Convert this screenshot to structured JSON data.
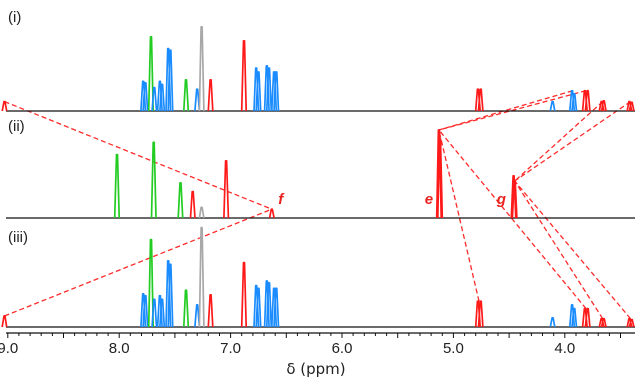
{
  "chart_data": {
    "type": "line",
    "title": "",
    "xlabel": "δ (ppm)",
    "x_reversed": true,
    "xlim": [
      9.07,
      3.37
    ],
    "xticks": [
      {
        "value": 9.0,
        "label": "9.0"
      },
      {
        "value": 8.0,
        "label": "8.0"
      },
      {
        "value": 7.0,
        "label": "7.0"
      },
      {
        "value": 6.0,
        "label": "6.0"
      },
      {
        "value": 5.0,
        "label": "5.0"
      },
      {
        "value": 4.0,
        "label": "4.0"
      }
    ],
    "colors": {
      "green": "#22cc22",
      "blue": "#1a8cff",
      "red": "#ff1a1a",
      "gray": "#a8a8a8",
      "baseline": "#111111",
      "correlation": "#ff2a2a"
    },
    "spectra": [
      {
        "label": "(i)",
        "peaks": [
          {
            "ppm": 9.03,
            "h": 0.12,
            "color": "red"
          },
          {
            "ppm": 7.785,
            "h": 0.38,
            "color": "blue"
          },
          {
            "ppm": 7.765,
            "h": 0.36,
            "color": "blue"
          },
          {
            "ppm": 7.715,
            "h": 0.95,
            "color": "green"
          },
          {
            "ppm": 7.685,
            "h": 0.3,
            "color": "blue"
          },
          {
            "ppm": 7.635,
            "h": 0.38,
            "color": "blue"
          },
          {
            "ppm": 7.615,
            "h": 0.34,
            "color": "blue"
          },
          {
            "ppm": 7.56,
            "h": 0.8,
            "color": "blue"
          },
          {
            "ppm": 7.54,
            "h": 0.78,
            "color": "blue"
          },
          {
            "ppm": 7.4,
            "h": 0.4,
            "color": "green"
          },
          {
            "ppm": 7.3,
            "h": 0.28,
            "color": "blue"
          },
          {
            "ppm": 7.26,
            "h": 1.08,
            "color": "gray"
          },
          {
            "ppm": 7.18,
            "h": 0.4,
            "color": "red"
          },
          {
            "ppm": 6.88,
            "h": 0.9,
            "color": "red"
          },
          {
            "ppm": 6.77,
            "h": 0.55,
            "color": "blue"
          },
          {
            "ppm": 6.75,
            "h": 0.5,
            "color": "blue"
          },
          {
            "ppm": 6.675,
            "h": 0.58,
            "color": "blue"
          },
          {
            "ppm": 6.655,
            "h": 0.55,
            "color": "blue"
          },
          {
            "ppm": 6.61,
            "h": 0.5,
            "color": "blue"
          },
          {
            "ppm": 6.59,
            "h": 0.5,
            "color": "blue"
          },
          {
            "ppm": 4.78,
            "h": 0.28,
            "color": "red"
          },
          {
            "ppm": 4.755,
            "h": 0.28,
            "color": "red"
          },
          {
            "ppm": 4.11,
            "h": 0.12,
            "color": "blue"
          },
          {
            "ppm": 3.935,
            "h": 0.26,
            "color": "blue"
          },
          {
            "ppm": 3.915,
            "h": 0.22,
            "color": "blue"
          },
          {
            "ppm": 3.82,
            "h": 0.26,
            "color": "red"
          },
          {
            "ppm": 3.795,
            "h": 0.26,
            "color": "red"
          },
          {
            "ppm": 3.67,
            "h": 0.12,
            "color": "red"
          },
          {
            "ppm": 3.65,
            "h": 0.13,
            "color": "red"
          },
          {
            "ppm": 3.42,
            "h": 0.12,
            "color": "red"
          },
          {
            "ppm": 3.4,
            "h": 0.11,
            "color": "red"
          }
        ]
      },
      {
        "label": "(ii)",
        "annotations": [
          {
            "text": "f",
            "ppm": 6.55
          },
          {
            "text": "e",
            "ppm": 5.22
          },
          {
            "text": "g",
            "ppm": 4.57
          }
        ],
        "peaks": [
          {
            "ppm": 8.02,
            "h": 0.72,
            "color": "green"
          },
          {
            "ppm": 7.69,
            "h": 0.86,
            "color": "green"
          },
          {
            "ppm": 7.45,
            "h": 0.4,
            "color": "green"
          },
          {
            "ppm": 7.34,
            "h": 0.3,
            "color": "red"
          },
          {
            "ppm": 7.26,
            "h": 0.12,
            "color": "gray"
          },
          {
            "ppm": 7.04,
            "h": 0.65,
            "color": "red"
          },
          {
            "ppm": 6.63,
            "h": 0.1,
            "color": "red"
          },
          {
            "ppm": 5.13,
            "h": 1.0,
            "color": "red"
          },
          {
            "ppm": 5.12,
            "h": 0.9,
            "color": "red"
          },
          {
            "ppm": 4.46,
            "h": 0.48,
            "color": "red"
          },
          {
            "ppm": 4.45,
            "h": 0.42,
            "color": "red"
          }
        ]
      },
      {
        "label": "(iii)",
        "peaks": [
          {
            "ppm": 9.03,
            "h": 0.12,
            "color": "red"
          },
          {
            "ppm": 7.785,
            "h": 0.36,
            "color": "blue"
          },
          {
            "ppm": 7.765,
            "h": 0.34,
            "color": "blue"
          },
          {
            "ppm": 7.715,
            "h": 0.95,
            "color": "green"
          },
          {
            "ppm": 7.685,
            "h": 0.3,
            "color": "blue"
          },
          {
            "ppm": 7.635,
            "h": 0.34,
            "color": "blue"
          },
          {
            "ppm": 7.615,
            "h": 0.3,
            "color": "blue"
          },
          {
            "ppm": 7.56,
            "h": 0.72,
            "color": "blue"
          },
          {
            "ppm": 7.54,
            "h": 0.68,
            "color": "blue"
          },
          {
            "ppm": 7.4,
            "h": 0.4,
            "color": "green"
          },
          {
            "ppm": 7.3,
            "h": 0.24,
            "color": "blue"
          },
          {
            "ppm": 7.26,
            "h": 1.08,
            "color": "gray"
          },
          {
            "ppm": 7.18,
            "h": 0.35,
            "color": "red"
          },
          {
            "ppm": 6.88,
            "h": 0.7,
            "color": "red"
          },
          {
            "ppm": 6.77,
            "h": 0.45,
            "color": "blue"
          },
          {
            "ppm": 6.75,
            "h": 0.42,
            "color": "blue"
          },
          {
            "ppm": 6.675,
            "h": 0.5,
            "color": "blue"
          },
          {
            "ppm": 6.655,
            "h": 0.48,
            "color": "blue"
          },
          {
            "ppm": 6.61,
            "h": 0.42,
            "color": "blue"
          },
          {
            "ppm": 6.59,
            "h": 0.42,
            "color": "blue"
          },
          {
            "ppm": 4.78,
            "h": 0.28,
            "color": "red"
          },
          {
            "ppm": 4.755,
            "h": 0.28,
            "color": "red"
          },
          {
            "ppm": 4.11,
            "h": 0.1,
            "color": "blue"
          },
          {
            "ppm": 3.935,
            "h": 0.24,
            "color": "blue"
          },
          {
            "ppm": 3.915,
            "h": 0.2,
            "color": "blue"
          },
          {
            "ppm": 3.82,
            "h": 0.2,
            "color": "red"
          },
          {
            "ppm": 3.795,
            "h": 0.2,
            "color": "red"
          },
          {
            "ppm": 3.67,
            "h": 0.09,
            "color": "red"
          },
          {
            "ppm": 3.65,
            "h": 0.09,
            "color": "red"
          },
          {
            "ppm": 3.42,
            "h": 0.09,
            "color": "red"
          },
          {
            "ppm": 3.4,
            "h": 0.08,
            "color": "red"
          }
        ]
      }
    ],
    "correlations": [
      {
        "from_spectrum": 0,
        "from_ppm": 9.03,
        "to_spectrum": 1,
        "to_ppm": 6.63
      },
      {
        "from_spectrum": 2,
        "from_ppm": 9.03,
        "to_spectrum": 1,
        "to_ppm": 6.63
      },
      {
        "from_spectrum": 0,
        "from_ppm": 3.93,
        "to_spectrum": 1,
        "to_ppm": 5.13
      },
      {
        "from_spectrum": 0,
        "from_ppm": 3.81,
        "to_spectrum": 1,
        "to_ppm": 5.13
      },
      {
        "from_spectrum": 0,
        "from_ppm": 3.66,
        "to_spectrum": 1,
        "to_ppm": 4.45
      },
      {
        "from_spectrum": 0,
        "from_ppm": 3.41,
        "to_spectrum": 1,
        "to_ppm": 4.45
      },
      {
        "from_spectrum": 2,
        "from_ppm": 4.77,
        "to_spectrum": 1,
        "to_ppm": 5.13
      },
      {
        "from_spectrum": 2,
        "from_ppm": 3.81,
        "to_spectrum": 1,
        "to_ppm": 5.13
      },
      {
        "from_spectrum": 2,
        "from_ppm": 3.66,
        "to_spectrum": 1,
        "to_ppm": 4.45
      },
      {
        "from_spectrum": 2,
        "from_ppm": 3.41,
        "to_spectrum": 1,
        "to_ppm": 4.45
      }
    ]
  }
}
